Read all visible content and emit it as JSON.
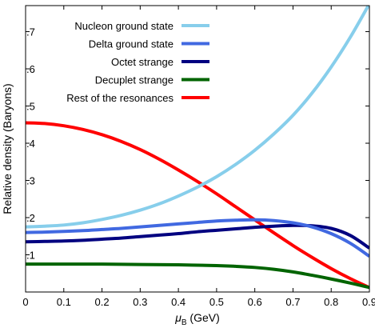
{
  "chart_data": {
    "type": "line",
    "xlabel": "μB (GeV)",
    "xlabel_parts": {
      "main": "μ",
      "sub": "B",
      "rest": " (GeV)"
    },
    "ylabel": "Relative density (Baryons)",
    "xlim": [
      0,
      0.9
    ],
    "ylim": [
      0,
      0.77
    ],
    "xticks": [
      0,
      0.1,
      0.2,
      0.3,
      0.4,
      0.5,
      0.6,
      0.7,
      0.8,
      0.9
    ],
    "xtick_labels": [
      "0",
      "0.1",
      "0.2",
      "0.3",
      "0.4",
      "0.5",
      "0.6",
      "0.7",
      "0.8",
      "0.9"
    ],
    "yticks": [
      0.1,
      0.2,
      0.3,
      0.4,
      0.5,
      0.6,
      0.7
    ],
    "ytick_labels": [
      ".1",
      ".2",
      ".3",
      ".4",
      ".5",
      ".6",
      ".7"
    ],
    "grid": false,
    "legend_position": "top-left",
    "series": [
      {
        "name": "Nucleon ground state",
        "color": "#87ceeb",
        "x": [
          0,
          0.05,
          0.1,
          0.15,
          0.2,
          0.25,
          0.3,
          0.35,
          0.4,
          0.45,
          0.5,
          0.55,
          0.6,
          0.65,
          0.7,
          0.75,
          0.8,
          0.85,
          0.9
        ],
        "y": [
          0.175,
          0.177,
          0.18,
          0.186,
          0.195,
          0.206,
          0.22,
          0.237,
          0.258,
          0.282,
          0.31,
          0.343,
          0.381,
          0.425,
          0.475,
          0.535,
          0.605,
          0.685,
          0.775
        ]
      },
      {
        "name": "Delta ground state",
        "color": "#4169e1",
        "x": [
          0,
          0.05,
          0.1,
          0.15,
          0.2,
          0.25,
          0.3,
          0.35,
          0.4,
          0.45,
          0.5,
          0.55,
          0.6,
          0.65,
          0.7,
          0.75,
          0.8,
          0.85,
          0.9
        ],
        "y": [
          0.16,
          0.161,
          0.163,
          0.165,
          0.168,
          0.171,
          0.175,
          0.179,
          0.183,
          0.187,
          0.191,
          0.193,
          0.194,
          0.192,
          0.186,
          0.175,
          0.157,
          0.131,
          0.096
        ]
      },
      {
        "name": "Octet strange",
        "color": "#000080",
        "x": [
          0,
          0.05,
          0.1,
          0.15,
          0.2,
          0.25,
          0.3,
          0.35,
          0.4,
          0.45,
          0.5,
          0.55,
          0.6,
          0.65,
          0.7,
          0.75,
          0.8,
          0.85,
          0.9
        ],
        "y": [
          0.135,
          0.136,
          0.137,
          0.139,
          0.142,
          0.145,
          0.149,
          0.153,
          0.157,
          0.162,
          0.166,
          0.17,
          0.174,
          0.177,
          0.179,
          0.178,
          0.171,
          0.152,
          0.118
        ]
      },
      {
        "name": "Decuplet strange",
        "color": "#006400",
        "x": [
          0,
          0.1,
          0.2,
          0.3,
          0.4,
          0.5,
          0.55,
          0.6,
          0.65,
          0.7,
          0.75,
          0.8,
          0.85,
          0.9
        ],
        "y": [
          0.075,
          0.075,
          0.075,
          0.074,
          0.073,
          0.071,
          0.069,
          0.066,
          0.061,
          0.054,
          0.045,
          0.035,
          0.024,
          0.012
        ]
      },
      {
        "name": "Rest of the resonances",
        "color": "#ff0000",
        "x": [
          0,
          0.05,
          0.1,
          0.15,
          0.2,
          0.25,
          0.3,
          0.35,
          0.4,
          0.45,
          0.5,
          0.55,
          0.6,
          0.65,
          0.7,
          0.75,
          0.8,
          0.85,
          0.9
        ],
        "y": [
          0.455,
          0.453,
          0.447,
          0.437,
          0.423,
          0.405,
          0.383,
          0.357,
          0.328,
          0.297,
          0.264,
          0.229,
          0.194,
          0.159,
          0.125,
          0.093,
          0.063,
          0.036,
          0.012
        ]
      }
    ]
  }
}
